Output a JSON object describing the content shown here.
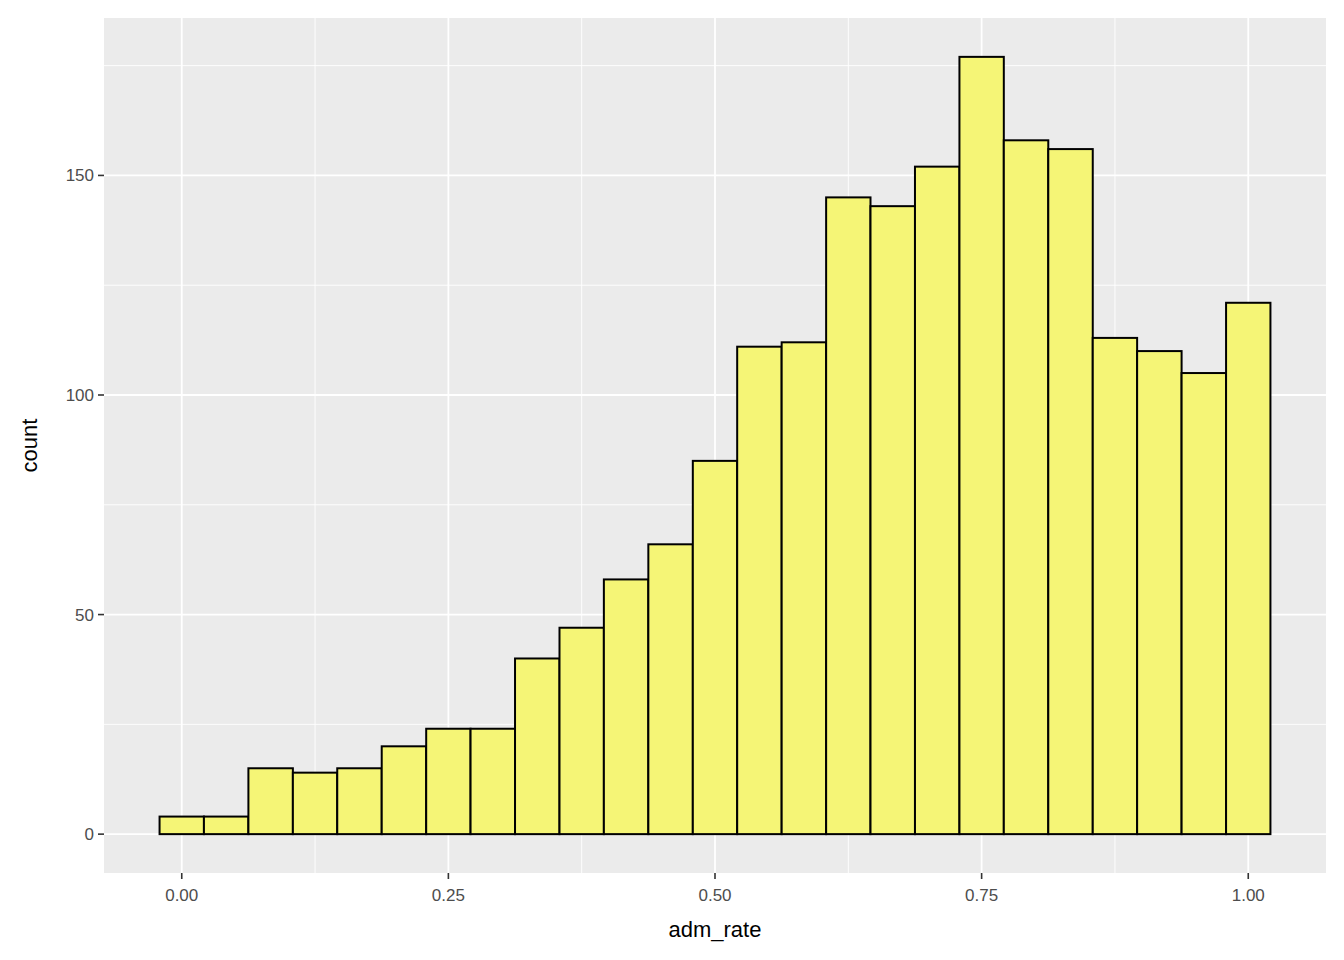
{
  "chart_data": {
    "type": "histogram",
    "x_label": "adm_rate",
    "y_label": "count",
    "bins": [
      -0.0208,
      0.0208,
      0.0625,
      0.1042,
      0.1458,
      0.1875,
      0.2292,
      0.2708,
      0.3125,
      0.3542,
      0.3958,
      0.4375,
      0.4792,
      0.5208,
      0.5625,
      0.6042,
      0.6458,
      0.6875,
      0.7292,
      0.7708,
      0.8125,
      0.8542,
      0.8958,
      0.9375,
      0.9792,
      1.0208
    ],
    "values": [
      4,
      4,
      15,
      14,
      15,
      20,
      24,
      24,
      40,
      47,
      58,
      66,
      85,
      111,
      112,
      145,
      143,
      152,
      177,
      158,
      156,
      113,
      110,
      105,
      121
    ],
    "color": "#f5f576",
    "xlim": [
      -0.0729,
      1.0729
    ],
    "ylim": [
      -8.85,
      185.85
    ],
    "xticks": [
      {
        "value": 0,
        "label": "0.00"
      },
      {
        "value": 0.25,
        "label": "0.25"
      },
      {
        "value": 0.5,
        "label": "0.50"
      },
      {
        "value": 0.75,
        "label": "0.75"
      },
      {
        "value": 1,
        "label": "1.00"
      }
    ],
    "yticks": [
      0,
      50,
      100,
      150
    ],
    "grid": true
  }
}
